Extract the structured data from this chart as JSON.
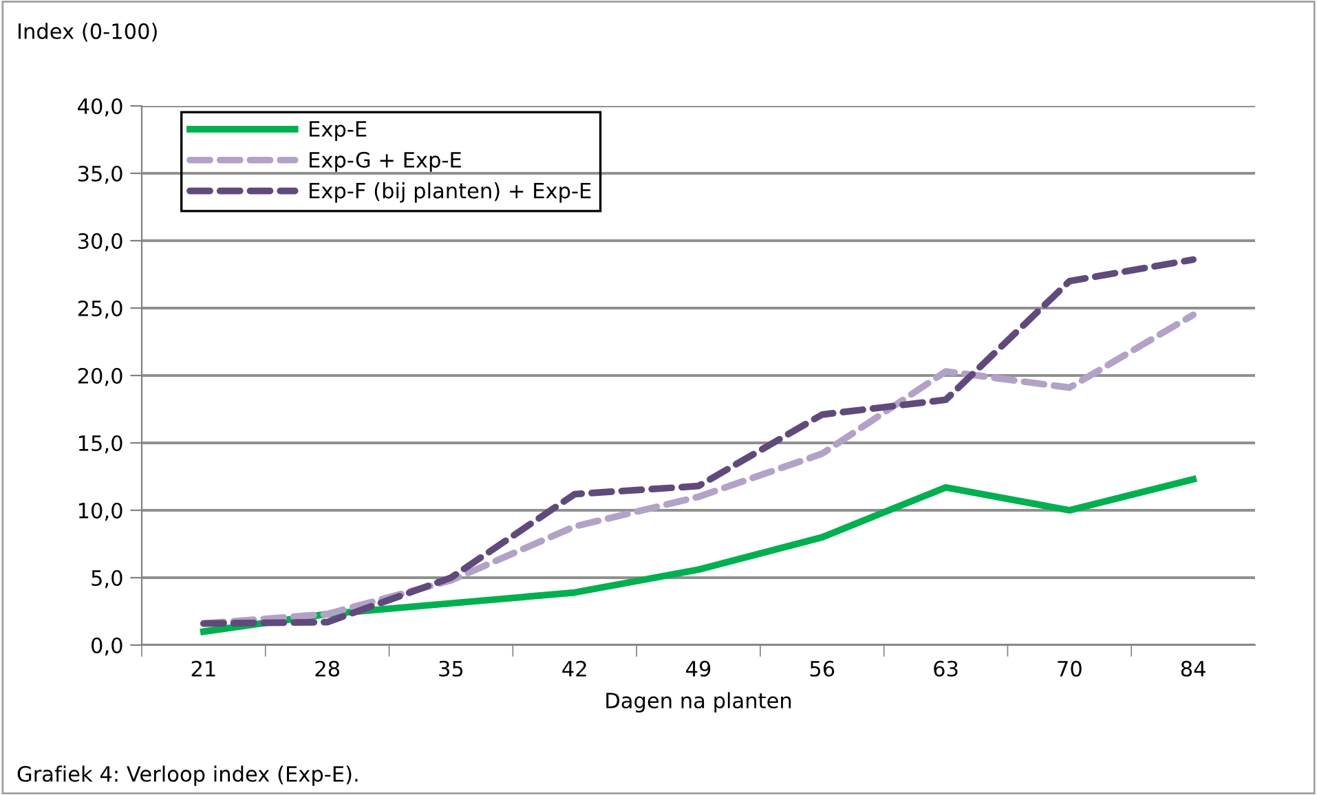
{
  "chart_data": {
    "type": "line",
    "ylabel": "Index (0-100)",
    "xlabel": "Dagen na planten",
    "annotations": [
      "Grafiek 4: Verloop index (Exp-E)."
    ],
    "categories": [
      "21",
      "28",
      "35",
      "42",
      "49",
      "56",
      "63",
      "70",
      "84"
    ],
    "series": [
      {
        "name": "Exp-E",
        "color": "#00b050",
        "line_style": "solid",
        "values": [
          1.0,
          2.3,
          3.1,
          3.9,
          5.6,
          8.0,
          11.7,
          10.0,
          12.3
        ]
      },
      {
        "name": "Exp-G + Exp-E",
        "color": "#b3a2c7",
        "line_style": "dashed",
        "values": [
          1.6,
          2.3,
          4.8,
          8.8,
          11.0,
          14.2,
          20.3,
          19.1,
          24.5
        ]
      },
      {
        "name": "Exp-F (bij planten) + Exp-E",
        "color": "#604a7b",
        "line_style": "dashed",
        "values": [
          1.6,
          1.7,
          5.0,
          11.2,
          11.8,
          17.1,
          18.2,
          27.0,
          28.6
        ]
      }
    ],
    "ylim": [
      0,
      40
    ],
    "yticks": [
      {
        "value": 0,
        "label": "0,0"
      },
      {
        "value": 5,
        "label": "5,0"
      },
      {
        "value": 10,
        "label": "10,0"
      },
      {
        "value": 15,
        "label": "15,0"
      },
      {
        "value": 20,
        "label": "20,0"
      },
      {
        "value": 25,
        "label": "25,0"
      },
      {
        "value": 30,
        "label": "30,0"
      },
      {
        "value": 35,
        "label": "35,0"
      },
      {
        "value": 40,
        "label": "40,0"
      }
    ],
    "grid": "y",
    "legend": "top left",
    "marker": "none"
  }
}
